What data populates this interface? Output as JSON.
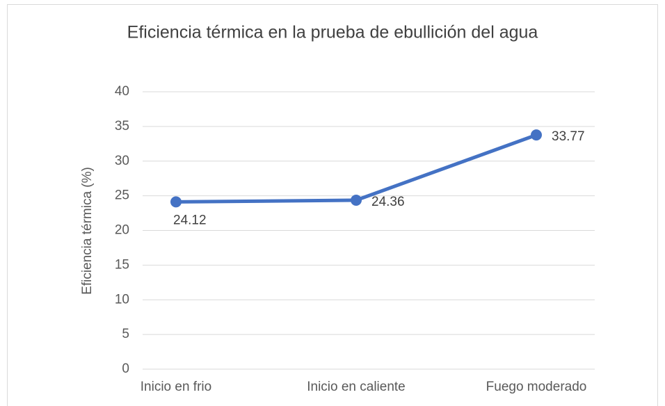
{
  "chart_data": {
    "type": "line",
    "title": "Eficiencia térmica en la prueba de ebullición del agua",
    "y_label": "Eficiencia térmica (%)",
    "categories": [
      "Inicio en frio",
      "Inicio en caliente",
      "Fuego moderado"
    ],
    "series": [
      {
        "name": "Eficiencia térmica",
        "color": "#4472c4",
        "values": [
          24.12,
          24.36,
          33.77
        ]
      }
    ],
    "ylim": [
      0,
      40
    ],
    "yticks": [
      0,
      5,
      10,
      15,
      20,
      25,
      30,
      35,
      40
    ],
    "grid": true,
    "data_labels": true
  }
}
